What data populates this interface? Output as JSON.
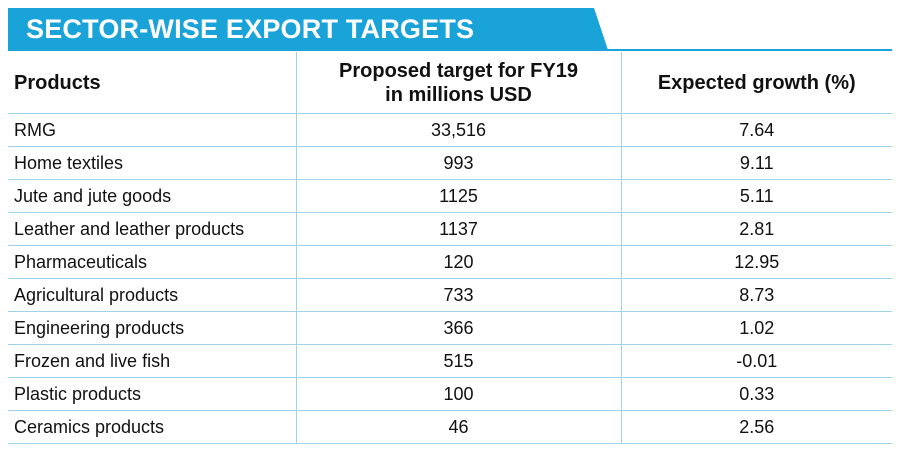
{
  "title": "SECTOR-WISE EXPORT TARGETS",
  "colors": {
    "banner": "#1aa3d9",
    "rule": "#9fd3ea",
    "text": "#111111"
  },
  "chart_data": {
    "type": "table",
    "columns": [
      "Products",
      "Proposed target for FY19 in millions USD",
      "Expected growth (%)"
    ],
    "rows": [
      [
        "RMG",
        "33,516",
        "7.64"
      ],
      [
        "Home textiles",
        "993",
        "9.11"
      ],
      [
        "Jute and jute goods",
        "1125",
        "5.11"
      ],
      [
        "Leather and leather products",
        "1137",
        "2.81"
      ],
      [
        "Pharmaceuticals",
        "120",
        "12.95"
      ],
      [
        "Agricultural products",
        "733",
        "8.73"
      ],
      [
        "Engineering products",
        "366",
        "1.02"
      ],
      [
        "Frozen and live fish",
        "515",
        "-0.01"
      ],
      [
        "Plastic products",
        "100",
        "0.33"
      ],
      [
        "Ceramics products",
        "46",
        "2.56"
      ]
    ]
  }
}
